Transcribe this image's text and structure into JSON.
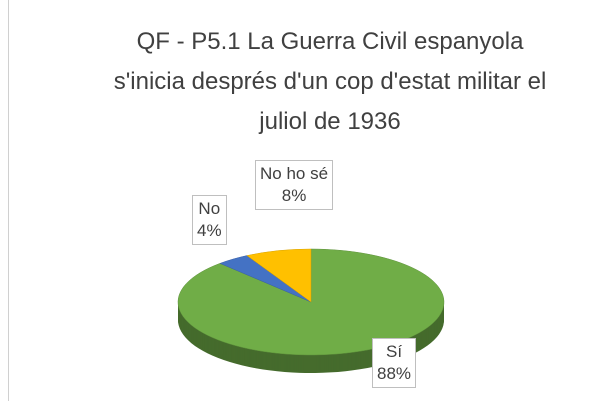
{
  "chart_data": {
    "type": "pie3d",
    "title": "QF - P5.1 La Guerra Civil espanyola s'inicia després d'un cop d'estat militar el juliol de 1936",
    "categories": [
      "Sí",
      "No",
      "No ho sé"
    ],
    "values": [
      88,
      4,
      8
    ],
    "value_labels": [
      "88%",
      "4%",
      "8%"
    ],
    "colors": [
      "#70ad47",
      "#4472c4",
      "#ffc000"
    ]
  }
}
